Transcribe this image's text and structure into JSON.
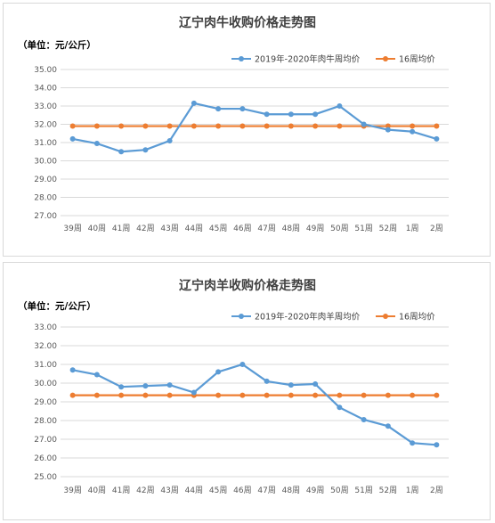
{
  "colors": {
    "series_a": "#5b9bd5",
    "series_b": "#ed7d31",
    "grid": "#d9d9d9",
    "text": "#595959"
  },
  "chart_data": [
    {
      "type": "line",
      "title": "辽宁肉牛收购价格走势图",
      "unit_label": "（单位：元/公斤）",
      "categories": [
        "39周",
        "40周",
        "41周",
        "42周",
        "43周",
        "44周",
        "45周",
        "46周",
        "47周",
        "48周",
        "49周",
        "50周",
        "51周",
        "52周",
        "1周",
        "2周"
      ],
      "ylim": [
        27.0,
        35.0
      ],
      "yticks": [
        "35.00",
        "34.00",
        "33.00",
        "32.00",
        "31.00",
        "30.00",
        "29.00",
        "28.00",
        "27.00"
      ],
      "grid": true,
      "legend_position": "top-right",
      "series": [
        {
          "name": "2019年-2020年肉牛周均价",
          "values": [
            31.2,
            30.95,
            30.5,
            30.6,
            31.1,
            33.15,
            32.85,
            32.85,
            32.55,
            32.55,
            32.55,
            33.0,
            32.0,
            31.7,
            31.6,
            31.2
          ]
        },
        {
          "name": "16周均价",
          "values": [
            31.9,
            31.9,
            31.9,
            31.9,
            31.9,
            31.9,
            31.9,
            31.9,
            31.9,
            31.9,
            31.9,
            31.9,
            31.9,
            31.9,
            31.9,
            31.9
          ]
        }
      ]
    },
    {
      "type": "line",
      "title": "辽宁肉羊收购价格走势图",
      "unit_label": "（单位：元/公斤）",
      "categories": [
        "39周",
        "40周",
        "41周",
        "42周",
        "43周",
        "44周",
        "45周",
        "46周",
        "47周",
        "48周",
        "49周",
        "50周",
        "51周",
        "52周",
        "1周",
        "2周"
      ],
      "ylim": [
        25.0,
        33.0
      ],
      "yticks": [
        "33.00",
        "32.00",
        "31.00",
        "30.00",
        "29.00",
        "28.00",
        "27.00",
        "26.00",
        "25.00"
      ],
      "grid": true,
      "legend_position": "top-right",
      "series": [
        {
          "name": "2019年-2020年肉羊周均价",
          "values": [
            30.7,
            30.45,
            29.8,
            29.85,
            29.9,
            29.5,
            30.6,
            31.0,
            30.1,
            29.9,
            29.95,
            28.7,
            28.05,
            27.7,
            26.8,
            26.7
          ]
        },
        {
          "name": "16周均价",
          "values": [
            29.35,
            29.35,
            29.35,
            29.35,
            29.35,
            29.35,
            29.35,
            29.35,
            29.35,
            29.35,
            29.35,
            29.35,
            29.35,
            29.35,
            29.35,
            29.35
          ]
        }
      ]
    }
  ]
}
